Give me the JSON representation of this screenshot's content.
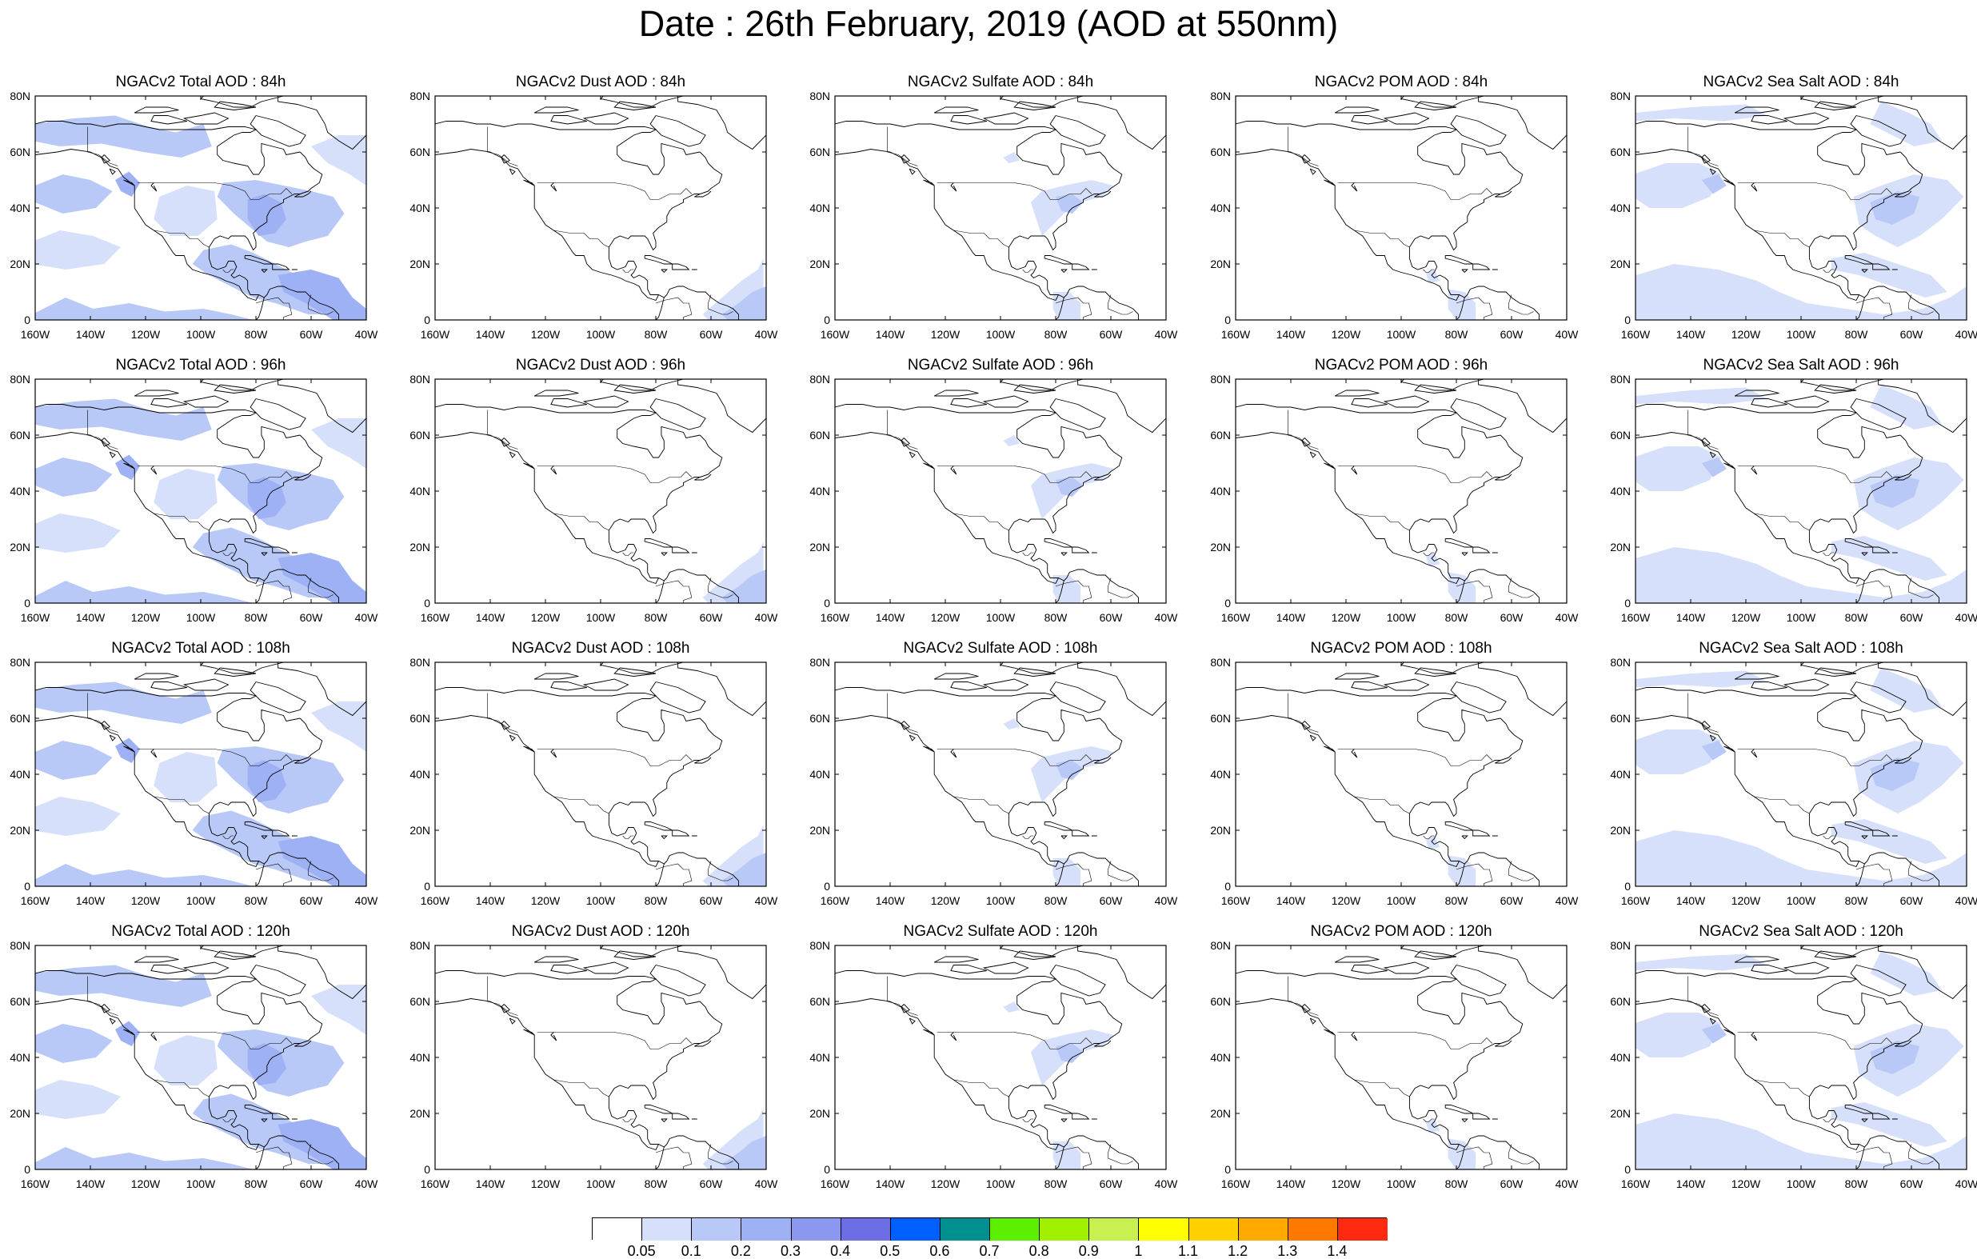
{
  "title": "Date : 26th February, 2019 (AOD at 550nm)",
  "rows": [
    {
      "lead": "84h",
      "titles": [
        "NGACv2 Total AOD : 84h",
        "NGACv2 Dust AOD : 84h",
        "NGACv2 Sulfate AOD : 84h",
        "NGACv2 POM AOD : 84h",
        "NGACv2 Sea Salt AOD : 84h"
      ]
    },
    {
      "lead": "96h",
      "titles": [
        "NGACv2 Total AOD : 96h",
        "NGACv2 Dust AOD : 96h",
        "NGACv2 Sulfate AOD : 96h",
        "NGACv2 POM AOD : 96h",
        "NGACv2 Sea Salt AOD : 96h"
      ]
    },
    {
      "lead": "108h",
      "titles": [
        "NGACv2 Total AOD : 108h",
        "NGACv2 Dust AOD : 108h",
        "NGACv2 Sulfate AOD : 108h",
        "NGACv2 POM AOD : 108h",
        "NGACv2 Sea Salt AOD : 108h"
      ]
    },
    {
      "lead": "120h",
      "titles": [
        "NGACv2 Total AOD : 120h",
        "NGACv2 Dust AOD : 120h",
        "NGACv2 Sulfate AOD : 120h",
        "NGACv2 POM AOD : 120h",
        "NGACv2 Sea Salt  AOD : 120h"
      ]
    }
  ],
  "columns": [
    {
      "product": "Total",
      "coverage": "widespread"
    },
    {
      "product": "Dust",
      "coverage": "southeast corner"
    },
    {
      "product": "Sulfate",
      "coverage": "eastern US / northwest South America"
    },
    {
      "product": "POM",
      "coverage": "Central / northwest South America"
    },
    {
      "product": "Sea Salt",
      "coverage": "ocean areas"
    }
  ],
  "lat_ticks": [
    "0",
    "20N",
    "40N",
    "60N",
    "80N"
  ],
  "lon_ticks": [
    "160W",
    "140W",
    "120W",
    "100W",
    "80W",
    "60W",
    "40W"
  ],
  "legend": {
    "labels": [
      "0.05",
      "0.1",
      "0.2",
      "0.3",
      "0.4",
      "0.5",
      "0.6",
      "0.7",
      "0.8",
      "0.9",
      "1",
      "1.1",
      "1.2",
      "1.3",
      "1.4"
    ],
    "colors": [
      "#ffffff",
      "#d7e0fa",
      "#b8c8f7",
      "#9fb1f5",
      "#8a98ef",
      "#6c6ee6",
      "#0060ff",
      "#009090",
      "#5af000",
      "#a0f000",
      "#c8f050",
      "#ffff00",
      "#ffd000",
      "#ffa800",
      "#ff7800",
      "#ff2a10"
    ]
  },
  "colors": {
    "aod_005_01": "#d7e0fa",
    "aod_01_02": "#b8c8f7",
    "aod_02_03": "#9fb1f5",
    "coastline": "#000000"
  }
}
